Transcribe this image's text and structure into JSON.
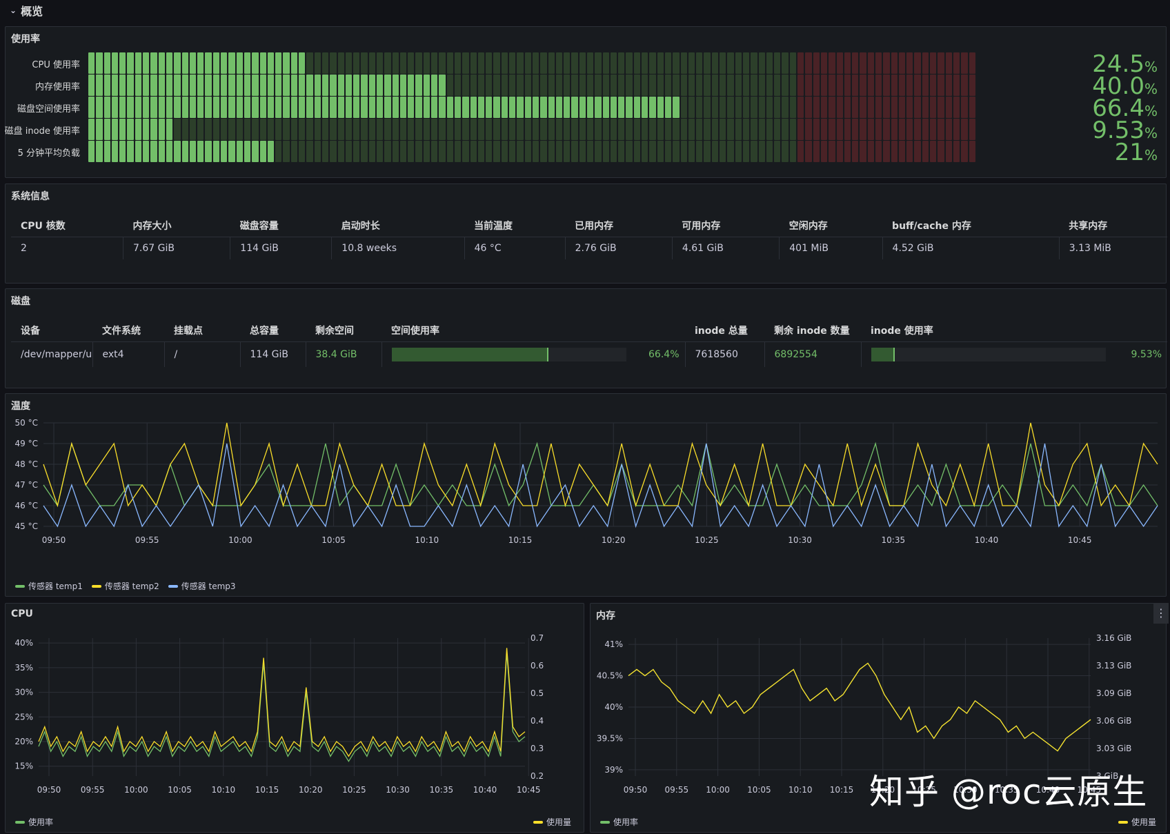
{
  "section_title": "概览",
  "usage": {
    "title": "使用率",
    "rows": [
      {
        "label": "CPU 使用率",
        "value": 24.5,
        "display": "24.5",
        "unit": "%"
      },
      {
        "label": "内存使用率",
        "value": 40.0,
        "display": "40.0",
        "unit": "%"
      },
      {
        "label": "磁盘空间使用率",
        "value": 66.4,
        "display": "66.4",
        "unit": "%"
      },
      {
        "label": "磁盘 inode 使用率",
        "value": 9.53,
        "display": "9.53",
        "unit": "%"
      },
      {
        "label": "5 分钟平均负载",
        "value": 21,
        "display": "21",
        "unit": "%"
      }
    ],
    "threshold_red": 80,
    "colors": {
      "on": "#73bf69",
      "off": "#2c3f2a",
      "red_off": "#4a2226"
    }
  },
  "sysinfo": {
    "title": "系统信息",
    "headers": [
      "CPU 核数",
      "内存大小",
      "磁盘容量",
      "启动时长",
      "当前温度",
      "已用内存",
      "可用内存",
      "空闲内存",
      "buff/cache 内存",
      "共享内存"
    ],
    "values": [
      "2",
      "7.67 GiB",
      "114 GiB",
      "10.8 weeks",
      "46 °C",
      "2.76 GiB",
      "4.61 GiB",
      "401 MiB",
      "4.52 GiB",
      "3.13 MiB"
    ]
  },
  "disk": {
    "title": "磁盘",
    "headers": [
      "设备",
      "文件系统",
      "挂载点",
      "总容量",
      "剩余空间",
      "空间使用率",
      "inode 总量",
      "剩余 inode 数量",
      "inode 使用率"
    ],
    "row": {
      "device": "/dev/mapper/ubu",
      "fs": "ext4",
      "mount": "/",
      "total": "114 GiB",
      "free": "38.4 GiB",
      "usage_pct": 66.4,
      "usage_text": "66.4%",
      "inode_total": "7618560",
      "inode_free": "6892554",
      "inode_pct": 9.53,
      "inode_text": "9.53%"
    }
  },
  "temperature": {
    "title": "温度",
    "legend": [
      "传感器 temp1",
      "传感器 temp2",
      "传感器 temp3"
    ]
  },
  "cpu": {
    "title": "CPU",
    "legend_left": "使用率",
    "legend_right": "使用量"
  },
  "memory": {
    "title": "内存",
    "legend_left": "使用率",
    "legend_right": "使用量",
    "menu_icon": "⋮"
  },
  "watermark": "知乎 @roc云原生",
  "chart_data": [
    {
      "type": "line",
      "title": "温度",
      "x_ticks": [
        "09:50",
        "09:55",
        "10:00",
        "10:05",
        "10:10",
        "10:15",
        "10:20",
        "10:25",
        "10:30",
        "10:35",
        "10:40",
        "10:45"
      ],
      "y_ticks": [
        "45 °C",
        "46 °C",
        "47 °C",
        "48 °C",
        "49 °C",
        "50 °C"
      ],
      "ylim": [
        45,
        50
      ],
      "series": [
        {
          "name": "传感器 temp1",
          "color": "#73bf69",
          "values": [
            47,
            46,
            49,
            47,
            46,
            46,
            47,
            47,
            46,
            48,
            46,
            47,
            46,
            46,
            46,
            47,
            48,
            46,
            46,
            46,
            49,
            46,
            47,
            46,
            46,
            48,
            46,
            47,
            46,
            47,
            46,
            46,
            48,
            46,
            47,
            49,
            46,
            46,
            46,
            47,
            46,
            48,
            46,
            46,
            46,
            47,
            46,
            49,
            46,
            47,
            46,
            46,
            48,
            46,
            47,
            46,
            46,
            46,
            47,
            49,
            46,
            46,
            47,
            46,
            48,
            46,
            46,
            46,
            47,
            46,
            49,
            46,
            46,
            47,
            46,
            48,
            46,
            46,
            47,
            46
          ]
        },
        {
          "name": "传感器 temp2",
          "color": "#fade2a",
          "values": [
            48,
            46,
            49,
            47,
            48,
            49,
            46,
            47,
            46,
            48,
            49,
            47,
            46,
            50,
            46,
            47,
            49,
            46,
            48,
            46,
            46,
            49,
            47,
            46,
            48,
            46,
            46,
            49,
            47,
            46,
            48,
            46,
            49,
            47,
            46,
            46,
            49,
            46,
            48,
            47,
            46,
            49,
            46,
            48,
            46,
            46,
            49,
            47,
            46,
            48,
            46,
            49,
            46,
            46,
            48,
            47,
            46,
            49,
            46,
            48,
            46,
            46,
            49,
            47,
            46,
            48,
            46,
            49,
            46,
            46,
            50,
            47,
            46,
            48,
            49,
            46,
            47,
            46,
            49,
            48
          ]
        },
        {
          "name": "传感器 temp3",
          "color": "#8ab8ff",
          "values": [
            46,
            45,
            47,
            45,
            46,
            45,
            47,
            45,
            46,
            45,
            46,
            47,
            45,
            49,
            45,
            46,
            45,
            47,
            45,
            46,
            45,
            48,
            45,
            46,
            45,
            47,
            45,
            45,
            46,
            45,
            47,
            45,
            46,
            45,
            48,
            45,
            46,
            47,
            45,
            46,
            45,
            48,
            45,
            47,
            45,
            46,
            45,
            49,
            45,
            46,
            45,
            47,
            45,
            46,
            45,
            48,
            45,
            46,
            45,
            47,
            45,
            46,
            45,
            48,
            45,
            46,
            45,
            47,
            45,
            46,
            45,
            49,
            45,
            46,
            45,
            48,
            45,
            46,
            45,
            46
          ]
        }
      ]
    },
    {
      "type": "line",
      "title": "CPU",
      "x_ticks": [
        "09:50",
        "09:55",
        "10:00",
        "10:05",
        "10:10",
        "10:15",
        "10:20",
        "10:25",
        "10:30",
        "10:35",
        "10:40",
        "10:45"
      ],
      "y_ticks_left": [
        "15%",
        "20%",
        "25%",
        "30%",
        "35%",
        "40%"
      ],
      "y_ticks_right": [
        "0.2",
        "0.3",
        "0.4",
        "0.5",
        "0.6",
        "0.7"
      ],
      "ylim": [
        13,
        41
      ],
      "series": [
        {
          "name": "使用率",
          "color": "#73bf69",
          "values": [
            19,
            22,
            18,
            20,
            17,
            19,
            18,
            21,
            17,
            19,
            18,
            20,
            18,
            22,
            17,
            19,
            18,
            20,
            17,
            19,
            18,
            21,
            17,
            19,
            18,
            20,
            18,
            19,
            17,
            21,
            18,
            19,
            20,
            18,
            19,
            17,
            21,
            36,
            19,
            18,
            20,
            17,
            19,
            18,
            30,
            19,
            18,
            20,
            17,
            19,
            18,
            16,
            18,
            19,
            17,
            20,
            18,
            19,
            17,
            20,
            18,
            19,
            17,
            20,
            18,
            19,
            17,
            21,
            18,
            19,
            17,
            20,
            18,
            19,
            17,
            21,
            17,
            38,
            22,
            20,
            21
          ]
        },
        {
          "name": "使用量",
          "color": "#fade2a",
          "values": [
            20,
            23,
            19,
            21,
            18,
            20,
            19,
            22,
            18,
            20,
            19,
            21,
            19,
            23,
            18,
            20,
            19,
            21,
            18,
            20,
            19,
            22,
            18,
            20,
            19,
            21,
            19,
            20,
            18,
            22,
            19,
            20,
            21,
            19,
            20,
            18,
            22,
            37,
            20,
            19,
            21,
            18,
            20,
            19,
            31,
            20,
            19,
            21,
            18,
            20,
            19,
            17,
            19,
            20,
            18,
            21,
            19,
            20,
            18,
            21,
            19,
            20,
            18,
            21,
            19,
            20,
            18,
            22,
            19,
            20,
            18,
            21,
            19,
            20,
            18,
            22,
            18,
            39,
            23,
            21,
            22
          ]
        }
      ]
    },
    {
      "type": "line",
      "title": "内存",
      "x_ticks": [
        "09:50",
        "09:55",
        "10:00",
        "10:05",
        "10:10",
        "10:15",
        "10:20",
        "10:25",
        "10:30",
        "10:35",
        "10:40",
        "10:45"
      ],
      "y_ticks_left": [
        "39%",
        "39.5%",
        "40%",
        "40.5%",
        "41%"
      ],
      "y_ticks_right": [
        "3 GiB",
        "3.03 GiB",
        "3.06 GiB",
        "3.09 GiB",
        "3.13 GiB",
        "3.16 GiB"
      ],
      "ylim": [
        38.9,
        41.1
      ],
      "series": [
        {
          "name": "使用率",
          "color": "#73bf69",
          "values": [
            40.5,
            40.6,
            40.5,
            40.6,
            40.4,
            40.3,
            40.1,
            40.0,
            39.9,
            40.1,
            39.9,
            40.2,
            40.0,
            40.1,
            39.9,
            40.0,
            40.2,
            40.3,
            40.4,
            40.5,
            40.6,
            40.3,
            40.1,
            40.2,
            40.3,
            40.1,
            40.2,
            40.4,
            40.6,
            40.7,
            40.5,
            40.2,
            40.0,
            39.8,
            40.0,
            39.6,
            39.7,
            39.5,
            39.7,
            39.8,
            40.0,
            39.9,
            40.1,
            40.0,
            39.9,
            39.8,
            39.6,
            39.7,
            39.5,
            39.6,
            39.5,
            39.4,
            39.3,
            39.5,
            39.6,
            39.7,
            39.8
          ]
        },
        {
          "name": "使用量",
          "color": "#fade2a",
          "values": [
            40.5,
            40.6,
            40.5,
            40.6,
            40.4,
            40.3,
            40.1,
            40.0,
            39.9,
            40.1,
            39.9,
            40.2,
            40.0,
            40.1,
            39.9,
            40.0,
            40.2,
            40.3,
            40.4,
            40.5,
            40.6,
            40.3,
            40.1,
            40.2,
            40.3,
            40.1,
            40.2,
            40.4,
            40.6,
            40.7,
            40.5,
            40.2,
            40.0,
            39.8,
            40.0,
            39.6,
            39.7,
            39.5,
            39.7,
            39.8,
            40.0,
            39.9,
            40.1,
            40.0,
            39.9,
            39.8,
            39.6,
            39.7,
            39.5,
            39.6,
            39.5,
            39.4,
            39.3,
            39.5,
            39.6,
            39.7,
            39.8
          ]
        }
      ]
    }
  ]
}
